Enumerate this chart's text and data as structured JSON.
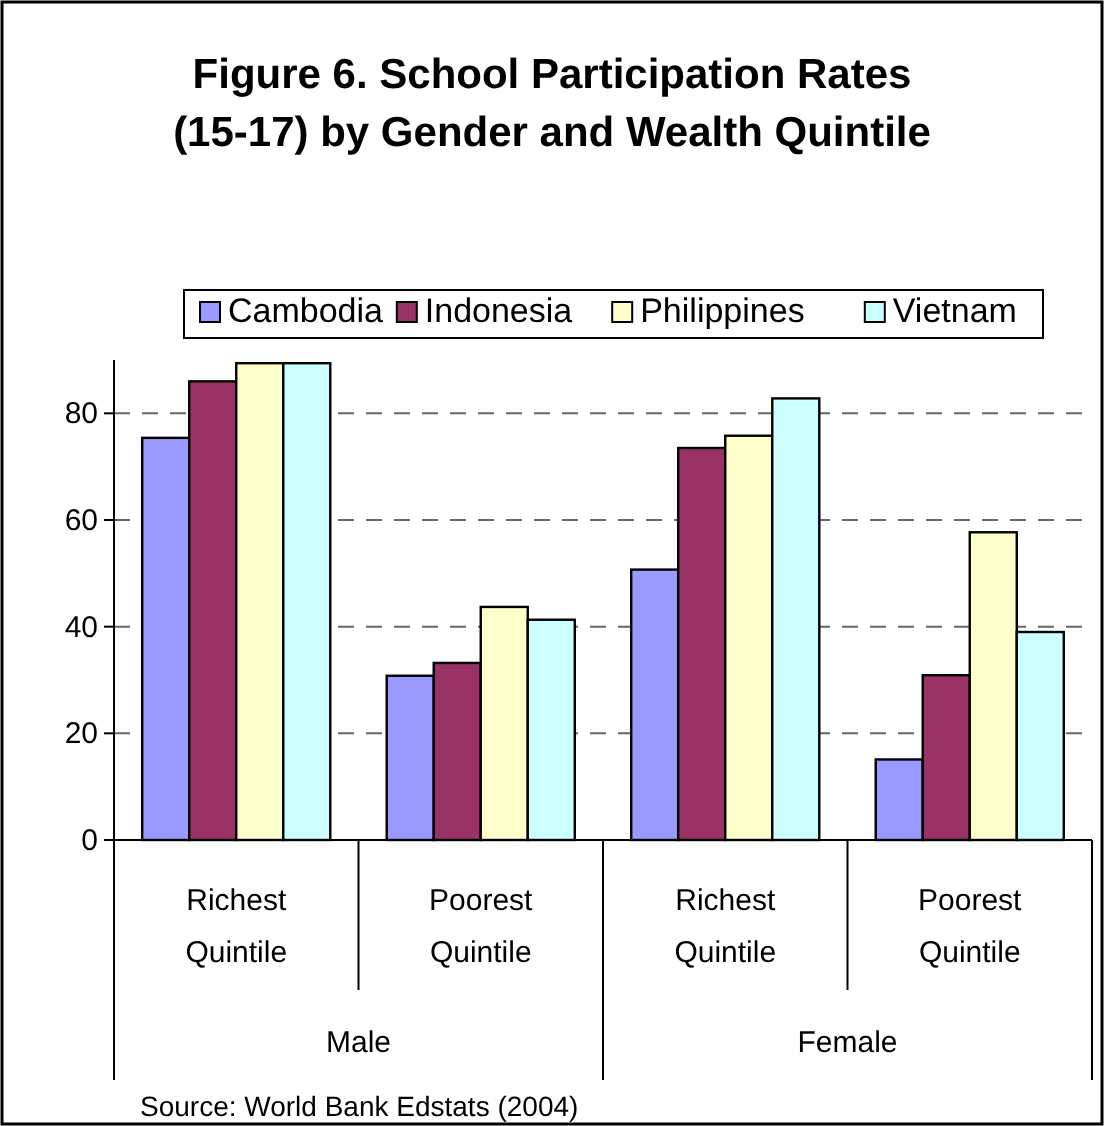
{
  "chart_data": {
    "type": "bar",
    "title": "Figure 6. School Participation Rates (15-17) by Gender and Wealth Quintile",
    "categories": [
      "Richest Quintile",
      "Poorest Quintile",
      "Richest Quintile",
      "Poorest Quintile"
    ],
    "series": [
      {
        "name": "Cambodia",
        "color": "#9999ff",
        "values": [
          75.4,
          30.8,
          50.7,
          15.1
        ]
      },
      {
        "name": "Indonesia",
        "color": "#993366",
        "values": [
          86,
          33.2,
          73.5,
          30.9
        ]
      },
      {
        "name": "Philippines",
        "color": "#ffffcc",
        "values": [
          89.4,
          43.7,
          75.8,
          57.7
        ]
      },
      {
        "name": "Vietnam",
        "color": "#ccffff",
        "values": [
          89.4,
          41.3,
          82.8,
          39
        ]
      }
    ],
    "ylim": [
      0,
      90
    ],
    "yticks": [
      0,
      20,
      40,
      60,
      80
    ],
    "grid": "y",
    "legend": "top",
    "annotations": [
      "Male",
      "Female",
      "Source:  World Bank Edstats (2004)"
    ]
  }
}
